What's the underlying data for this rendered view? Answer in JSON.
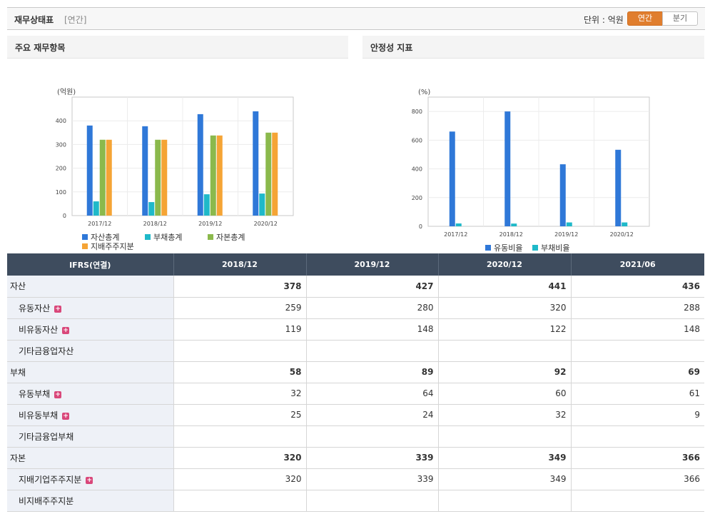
{
  "header": {
    "title": "재무상태표",
    "subtitle": "[연간]",
    "unit_label": "단위 : 억원",
    "toggle": {
      "annual": "연간",
      "quarter": "분기"
    }
  },
  "panels": {
    "left_title": "주요 재무항목",
    "right_title": "안정성 지표"
  },
  "chart_data": [
    {
      "type": "bar",
      "categories": [
        "2017/12",
        "2018/12",
        "2019/12",
        "2020/12"
      ],
      "ylabel": "(억원)",
      "ylim": [
        0,
        500
      ],
      "yticks": [
        0,
        100,
        200,
        300,
        400
      ],
      "grid": true,
      "legend_position": "bottom",
      "series": [
        {
          "name": "자산총계",
          "color": "#2f78d8",
          "values": [
            380,
            377,
            428,
            440
          ]
        },
        {
          "name": "부채총계",
          "color": "#1fb9c9",
          "values": [
            60,
            57,
            90,
            93
          ]
        },
        {
          "name": "자본총계",
          "color": "#8bb94c",
          "values": [
            320,
            320,
            338,
            350
          ]
        },
        {
          "name": "지배주주지분",
          "color": "#f5a435",
          "values": [
            320,
            320,
            338,
            350
          ]
        }
      ]
    },
    {
      "type": "bar",
      "categories": [
        "2017/12",
        "2018/12",
        "2019/12",
        "2020/12"
      ],
      "ylabel": "(%)",
      "ylim": [
        0,
        900
      ],
      "yticks": [
        0,
        200,
        400,
        600,
        800
      ],
      "grid": true,
      "legend_position": "bottom",
      "series": [
        {
          "name": "유동비율",
          "color": "#2f78d8",
          "values": [
            660,
            800,
            432,
            533
          ]
        },
        {
          "name": "부채비율",
          "color": "#1fb9c9",
          "values": [
            20,
            19,
            27,
            27
          ]
        }
      ]
    }
  ],
  "table": {
    "header": [
      "IFRS(연결)",
      "2018/12",
      "2019/12",
      "2020/12",
      "2021/06"
    ],
    "rows": [
      {
        "label": "자산",
        "level": 0,
        "plus": false,
        "values": [
          "378",
          "427",
          "441",
          "436"
        ]
      },
      {
        "label": "유동자산",
        "level": 1,
        "plus": true,
        "values": [
          "259",
          "280",
          "320",
          "288"
        ]
      },
      {
        "label": "비유동자산",
        "level": 1,
        "plus": true,
        "values": [
          "119",
          "148",
          "122",
          "148"
        ]
      },
      {
        "label": "기타금융업자산",
        "level": 1,
        "plus": false,
        "values": [
          "",
          "",
          "",
          ""
        ]
      },
      {
        "label": "부채",
        "level": 0,
        "plus": false,
        "values": [
          "58",
          "89",
          "92",
          "69"
        ]
      },
      {
        "label": "유동부채",
        "level": 1,
        "plus": true,
        "values": [
          "32",
          "64",
          "60",
          "61"
        ]
      },
      {
        "label": "비유동부채",
        "level": 1,
        "plus": true,
        "values": [
          "25",
          "24",
          "32",
          "9"
        ]
      },
      {
        "label": "기타금융업부채",
        "level": 1,
        "plus": false,
        "values": [
          "",
          "",
          "",
          ""
        ]
      },
      {
        "label": "자본",
        "level": 0,
        "plus": false,
        "values": [
          "320",
          "339",
          "349",
          "366"
        ]
      },
      {
        "label": "지배기업주주지분",
        "level": 1,
        "plus": true,
        "values": [
          "320",
          "339",
          "349",
          "366"
        ]
      },
      {
        "label": "비지배주주지분",
        "level": 1,
        "plus": false,
        "values": [
          "",
          "",
          "",
          ""
        ]
      }
    ]
  }
}
